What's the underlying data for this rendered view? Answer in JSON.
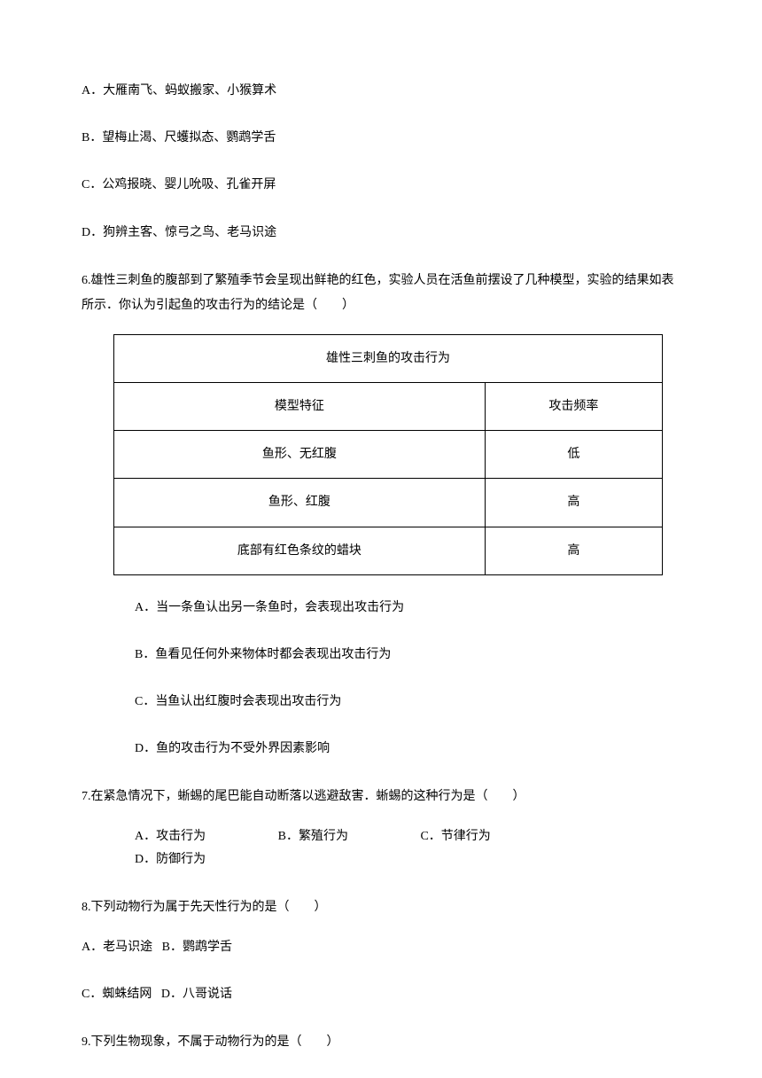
{
  "q5_options": {
    "a": "A．大雁南飞、蚂蚁搬家、小猴算术",
    "b": "B．望梅止渴、尺蠖拟态、鹦鹉学舌",
    "c": "C．公鸡报晓、婴儿吮吸、孔雀开屏",
    "d": "D．狗辨主客、惊弓之鸟、老马识途"
  },
  "q6": {
    "text": "6.雄性三刺鱼的腹部到了繁殖季节会呈现出鲜艳的红色，实验人员在活鱼前摆设了几种模型，实验的结果如表所示．你认为引起鱼的攻击行为的结论是（　　）",
    "table": {
      "title": "雄性三刺鱼的攻击行为",
      "header_col1": "模型特征",
      "header_col2": "攻击频率",
      "rows": [
        {
          "col1": "鱼形、无红腹",
          "col2": "低"
        },
        {
          "col1": "鱼形、红腹",
          "col2": "高"
        },
        {
          "col1": "底部有红色条纹的蜡块",
          "col2": "高"
        }
      ]
    },
    "options": {
      "a": "A．当一条鱼认出另一条鱼时，会表现出攻击行为",
      "b": "B．鱼看见任何外来物体时都会表现出攻击行为",
      "c": "C．当鱼认出红腹时会表现出攻击行为",
      "d": "D．鱼的攻击行为不受外界因素影响"
    }
  },
  "q7": {
    "text": "7.在紧急情况下，蜥蜴的尾巴能自动断落以逃避敌害．蜥蜴的这种行为是（　　）",
    "options": {
      "a": "A．攻击行为",
      "b": "B．繁殖行为",
      "c": "C．节律行为",
      "d": "D．防御行为"
    }
  },
  "q8": {
    "text": "8.下列动物行为属于先天性行为的是（　　）",
    "options": {
      "a": "A．老马识途",
      "b": "B．鹦鹉学舌",
      "c": "C．蜘蛛结网",
      "d": "D．八哥说话"
    }
  },
  "q9": {
    "text": "9.下列生物现象，不属于动物行为的是（　　）"
  }
}
